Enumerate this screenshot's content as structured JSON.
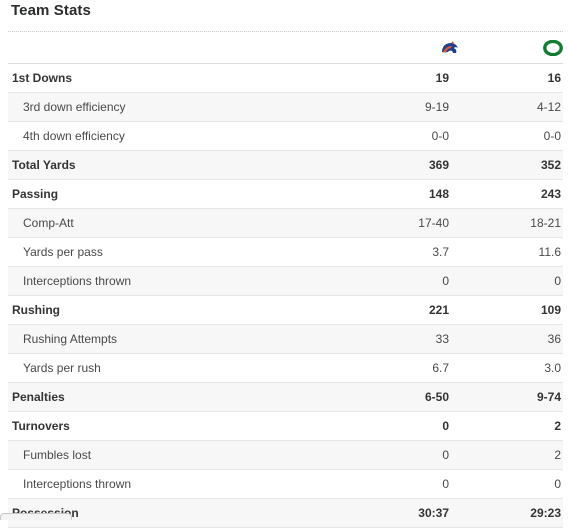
{
  "header": {
    "title": "Team Stats"
  },
  "teams": [
    {
      "icon": "boise-state-broncos-logo-icon",
      "color": "#1f3f8f",
      "accent": "#e2582c"
    },
    {
      "icon": "oregon-ducks-logo-icon",
      "color": "#157a34"
    }
  ],
  "stats": [
    {
      "label": "1st Downs",
      "type": "main",
      "team1": "19",
      "team2": "16"
    },
    {
      "label": "3rd down efficiency",
      "type": "sub",
      "team1": "9-19",
      "team2": "4-12"
    },
    {
      "label": "4th down efficiency",
      "type": "sub",
      "team1": "0-0",
      "team2": "0-0"
    },
    {
      "label": "Total Yards",
      "type": "main",
      "team1": "369",
      "team2": "352"
    },
    {
      "label": "Passing",
      "type": "main",
      "team1": "148",
      "team2": "243"
    },
    {
      "label": "Comp-Att",
      "type": "sub",
      "team1": "17-40",
      "team2": "18-21"
    },
    {
      "label": "Yards per pass",
      "type": "sub",
      "team1": "3.7",
      "team2": "11.6"
    },
    {
      "label": "Interceptions thrown",
      "type": "sub",
      "team1": "0",
      "team2": "0"
    },
    {
      "label": "Rushing",
      "type": "main",
      "team1": "221",
      "team2": "109"
    },
    {
      "label": "Rushing Attempts",
      "type": "sub",
      "team1": "33",
      "team2": "36"
    },
    {
      "label": "Yards per rush",
      "type": "sub",
      "team1": "6.7",
      "team2": "3.0"
    },
    {
      "label": "Penalties",
      "type": "main",
      "team1": "6-50",
      "team2": "9-74"
    },
    {
      "label": "Turnovers",
      "type": "main",
      "team1": "0",
      "team2": "2"
    },
    {
      "label": "Fumbles lost",
      "type": "sub",
      "team1": "0",
      "team2": "2"
    },
    {
      "label": "Interceptions thrown",
      "type": "sub",
      "team1": "0",
      "team2": "0"
    },
    {
      "label": "Possession",
      "type": "main",
      "team1": "30:37",
      "team2": "29:23"
    }
  ]
}
